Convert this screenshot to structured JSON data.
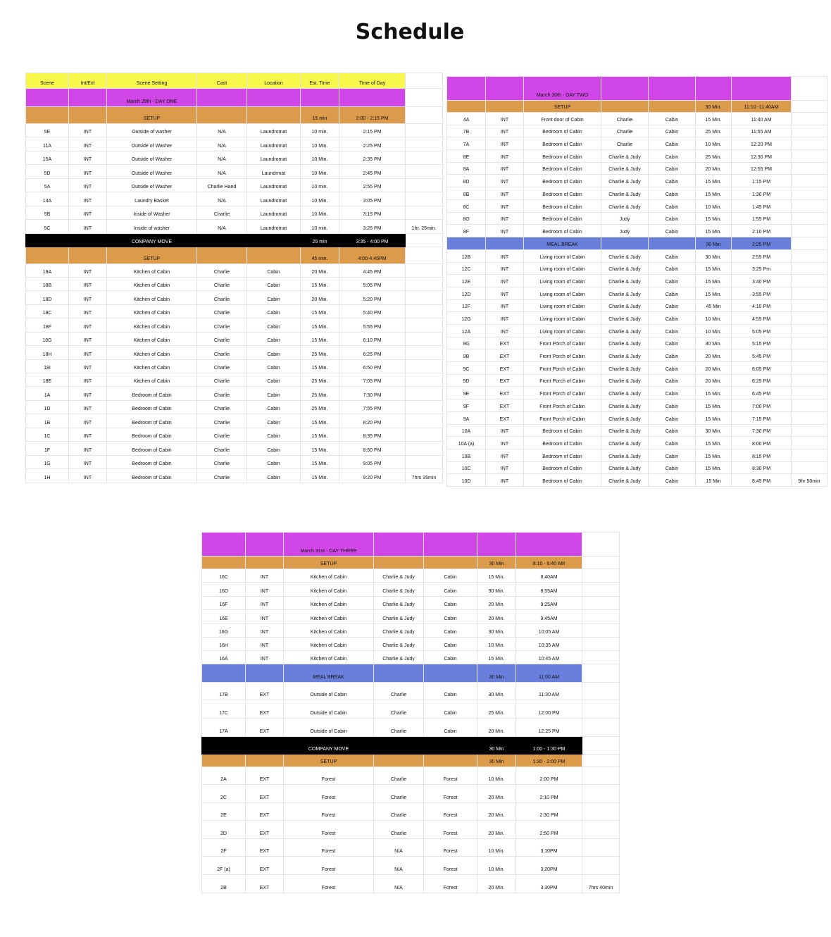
{
  "title": "Schedule",
  "headers": [
    "Scene",
    "Int/Ext",
    "Scene Setting",
    "Cast",
    "Location",
    "Est. Time",
    "Time of Day"
  ],
  "sheets": [
    {
      "id": "day-one",
      "rows": [
        {
          "type": "header"
        },
        {
          "type": "day",
          "label": "March 29th - DAY ONE"
        },
        {
          "type": "setup",
          "label": "SETUP",
          "est": "15 min",
          "time": "2:00 - 2:15 PM"
        },
        {
          "type": "scene",
          "cells": [
            "5E",
            "INT",
            "Outside of washer",
            "N/A",
            "Laundromat",
            "10 min.",
            "2:15 PM"
          ]
        },
        {
          "type": "scene",
          "cells": [
            "11A",
            "INT",
            "Outside of Washer",
            "N/A",
            "Laundromat",
            "10 Min.",
            "2:25 PM"
          ]
        },
        {
          "type": "scene",
          "cells": [
            "15A",
            "INT",
            "Outside of Washer",
            "N/A",
            "Laundromat",
            "10 Min.",
            "2:35 PM"
          ]
        },
        {
          "type": "scene",
          "cells": [
            "5D",
            "INT",
            "Outside of Washer",
            "N/A",
            "Laundrmat",
            "10 Min.",
            "2:45 PM"
          ]
        },
        {
          "type": "scene",
          "cells": [
            "5A",
            "INT",
            "Outside of Washer",
            "Charlie Hand",
            "Laundromat",
            "10 min.",
            "2:55 PM"
          ]
        },
        {
          "type": "scene",
          "cells": [
            "14A",
            "INT",
            "Laundry Basket",
            "N/A",
            "Laundromat",
            "10 Min.",
            "3:05 PM"
          ]
        },
        {
          "type": "scene",
          "cells": [
            "5B",
            "INT",
            "Inside of Washer",
            "Charlie",
            "Laundromat",
            "10 Min.",
            "3:15 PM"
          ]
        },
        {
          "type": "scene",
          "cells": [
            "5C",
            "INT",
            "Inside of washer",
            "N/A",
            "Laundromat",
            "10 min.",
            "3:25 PM"
          ],
          "extra": "1hr. 25min."
        },
        {
          "type": "move",
          "label": "COMPANY MOVE",
          "est": "25 min",
          "time": "3:35 - 4:00 PM"
        },
        {
          "type": "setup",
          "label": "SETUP",
          "est": "45 min.",
          "time": "4:00-4:45PM"
        },
        {
          "type": "scene",
          "cells": [
            "18A",
            "INT",
            "Kitchen of Cabin",
            "Charlie",
            "Cabin",
            "20 Min.",
            "4:45 PM"
          ]
        },
        {
          "type": "scene",
          "cells": [
            "18B",
            "INT",
            "Kitchen of Cabin",
            "Charlie",
            "Cabin",
            "15 Min.",
            "5:05 PM"
          ]
        },
        {
          "type": "scene",
          "cells": [
            "18D",
            "INT",
            "Kitchen of Cabin",
            "Charlie",
            "Cabin",
            "20 Min.",
            "5:20 PM"
          ]
        },
        {
          "type": "scene",
          "cells": [
            "18C",
            "INT",
            "Kitchen of Cabin",
            "Charlie",
            "Cabin",
            "15 Min.",
            "5:40 PM"
          ]
        },
        {
          "type": "scene",
          "cells": [
            "18F",
            "INT",
            "Kitchen of Cabin",
            "Charlie",
            "Cabin",
            "15 Min.",
            "5:55 PM"
          ]
        },
        {
          "type": "scene",
          "cells": [
            "18G",
            "INT",
            "Kitchen of Cabin",
            "Charlie",
            "Cabin",
            "15 Min.",
            "6:10 PM"
          ]
        },
        {
          "type": "scene",
          "cells": [
            "18H",
            "INT",
            "Kitchen of Cabin",
            "Charlie",
            "Cabin",
            "25 Min.",
            "6:25 PM"
          ]
        },
        {
          "type": "scene",
          "cells": [
            "18I",
            "INT",
            "Kitchen of Cabin",
            "Charlie",
            "Cabin",
            "15 Min.",
            "6:50 PM"
          ]
        },
        {
          "type": "scene",
          "cells": [
            "18E",
            "INT",
            "Kitchen of Cabin",
            "Charlie",
            "Cabin",
            "25 Min.",
            "7:05 PM"
          ]
        },
        {
          "type": "scene",
          "cells": [
            "1A",
            "INT",
            "Bedroom of Cabin",
            "Charlie",
            "Cabin",
            "25 Min.",
            "7:30 PM"
          ]
        },
        {
          "type": "scene",
          "cells": [
            "1D",
            "INT",
            "Bedroom of Cabin",
            "Charlie",
            "Cabin",
            "25 Min.",
            "7:55 PM"
          ]
        },
        {
          "type": "scene",
          "cells": [
            "1B",
            "INT",
            "Bedroom of Cabin",
            "Charlie",
            "Cabin",
            "15 Min.",
            "8:20 PM"
          ]
        },
        {
          "type": "scene",
          "cells": [
            "1C",
            "INT",
            "Bedroom of Cabin",
            "Charlie",
            "Cabin",
            "15 Min.",
            "8:35 PM"
          ]
        },
        {
          "type": "scene",
          "cells": [
            "1F",
            "INT",
            "Bedroom of Cabin",
            "Charlie",
            "Cabin",
            "15 Min.",
            "8:50 PM"
          ]
        },
        {
          "type": "scene",
          "cells": [
            "1G",
            "INT",
            "Bedroom of Cabin",
            "Charlie",
            "Cabin",
            "15 Min.",
            "9:05 PM"
          ]
        },
        {
          "type": "scene",
          "cells": [
            "1H",
            "INT",
            "Bedroom of Cabin",
            "Charlie",
            "Cabin",
            "15 Min.",
            "9:20 PM"
          ],
          "extra": "7hrs 35min"
        }
      ]
    },
    {
      "id": "day-two",
      "rows": [
        {
          "type": "day",
          "label": "March 30th - DAY TWO"
        },
        {
          "type": "setup",
          "label": "SETUP",
          "est": "30 Min.",
          "time": "11:10 -11:40AM"
        },
        {
          "type": "scene",
          "cells": [
            "4A",
            "INT",
            "Front door of Cabin",
            "Charlie",
            "Cabin",
            "15 Min.",
            "11:40 AM"
          ]
        },
        {
          "type": "scene",
          "cells": [
            "7B",
            "INT",
            "Bedroom of Cabin",
            "Charlie",
            "Cabin",
            "25 Min.",
            "11:55 AM"
          ]
        },
        {
          "type": "scene",
          "cells": [
            "7A",
            "INT",
            "Bedroom of Cabin",
            "Charlie",
            "Cabin",
            "10 Min.",
            "12:20 PM"
          ]
        },
        {
          "type": "scene",
          "cells": [
            "8E",
            "INT",
            "Bedroom of Cabin",
            "Charlie & Judy",
            "Cabin",
            "25 Min.",
            "12:30 PM"
          ]
        },
        {
          "type": "scene",
          "cells": [
            "8A",
            "INT",
            "Bedroom of Cabin",
            "Charlie & Judy",
            "Cabin",
            "20 Min.",
            "12:55 PM"
          ]
        },
        {
          "type": "scene",
          "cells": [
            "8D",
            "INT",
            "Bedroom of Cabin",
            "Charlie & Judy",
            "Cabin",
            "15 Min.",
            "1:15 PM"
          ]
        },
        {
          "type": "scene",
          "cells": [
            "8B",
            "INT",
            "Bedroom of Cabin",
            "Charlie & Judy",
            "Cabin",
            "15 Min.",
            "1:30 PM"
          ]
        },
        {
          "type": "scene",
          "cells": [
            "8C",
            "INT",
            "Bedroom of Cabin",
            "Charlie & Judy",
            "Cabin",
            "10 Min.",
            "1:45 PM"
          ]
        },
        {
          "type": "scene",
          "cells": [
            "8G",
            "INT",
            "Bedroom of Cabin",
            "Judy",
            "Cabin",
            "15 Min.",
            "1:55 PM"
          ]
        },
        {
          "type": "scene",
          "cells": [
            "8F",
            "INT",
            "Bedroom of Cabin",
            "Judy",
            "Cabin",
            "15 Min.",
            "2:10 PM"
          ]
        },
        {
          "type": "meal",
          "label": "MEAL BREAK",
          "est": "30 Min",
          "time": "2:25 PM"
        },
        {
          "type": "scene",
          "cells": [
            "12B",
            "INT",
            "Living room of Cabin",
            "Charlie & Judy",
            "Cabin",
            "30 Min.",
            "2:55 PM"
          ]
        },
        {
          "type": "scene",
          "cells": [
            "12C",
            "INT",
            "Living room of Cabin",
            "Charlie & Judy",
            "Cabin",
            "15 Min.",
            "3:25 Pm"
          ]
        },
        {
          "type": "scene",
          "cells": [
            "12E",
            "INT",
            "Living room of Cabin",
            "Charlie & Judy",
            "Cabin",
            "15 Min.",
            "3:40 PM"
          ]
        },
        {
          "type": "scene",
          "cells": [
            "12D",
            "INT",
            "Living room of Cabin",
            "Charlie & Judy",
            "Cabin",
            "15 Min.",
            "3:55 PM"
          ]
        },
        {
          "type": "scene",
          "cells": [
            "12F",
            "INT",
            "Living room of Cabin",
            "Charlie & Judy",
            "Cabin",
            "45 Min",
            "4:10 PM"
          ]
        },
        {
          "type": "scene",
          "cells": [
            "12G",
            "INT",
            "Living room of Cabin",
            "Charlie & Judy",
            "Cabin",
            "10 Min.",
            "4:55 PM"
          ]
        },
        {
          "type": "scene",
          "cells": [
            "12A",
            "INT",
            "Living room of Cabin",
            "Charlie & Judy",
            "Cabin",
            "10 Min.",
            "5:05 PM"
          ]
        },
        {
          "type": "scene",
          "cells": [
            "9G",
            "EXT",
            "Front Porch of Cabin",
            "Charlie & Judy",
            "Cabin",
            "30 Min.",
            "5:15 PM"
          ]
        },
        {
          "type": "scene",
          "cells": [
            "9B",
            "EXT",
            "Front Porch of Cabin",
            "Charlie & Judy",
            "Cabin",
            "20 Min.",
            "5:45 PM"
          ]
        },
        {
          "type": "scene",
          "cells": [
            "9C",
            "EXT",
            "Front Porch of Cabin",
            "Charlie & Judy",
            "Cabin",
            "20 Min.",
            "6:05 PM"
          ]
        },
        {
          "type": "scene",
          "cells": [
            "9D",
            "EXT",
            "Front Porch of Cabin",
            "Charlie & Judy",
            "Cabin",
            "20 Min.",
            "6:25 PM"
          ]
        },
        {
          "type": "scene",
          "cells": [
            "9E",
            "EXT",
            "Front Porch of Cabin",
            "Charlie & Judy",
            "Cabin",
            "15 Min.",
            "6:45 PM"
          ]
        },
        {
          "type": "scene",
          "cells": [
            "9F",
            "EXT",
            "Front Porch of Cabin",
            "Charlie & Judy",
            "Cabin",
            "15 Min.",
            "7:00 PM"
          ]
        },
        {
          "type": "scene",
          "cells": [
            "9A",
            "EXT",
            "Front Porch of Cabin",
            "Charlie & Judy",
            "Cabin",
            "15 Min.",
            "7:15 PM"
          ]
        },
        {
          "type": "scene",
          "cells": [
            "10A",
            "INT",
            "Bedroom of Cabin",
            "Charlie & Judy",
            "Cabin",
            "30 Min.",
            "7:30 PM"
          ]
        },
        {
          "type": "scene",
          "cells": [
            "10A (a)",
            "INT",
            "Bedroom of Cabin",
            "Charlie & Judy",
            "Cabin",
            "15 Min.",
            "8:00 PM"
          ]
        },
        {
          "type": "scene",
          "cells": [
            "10B",
            "INT",
            "Bedroom of Cabin",
            "Charlie & Judy",
            "Cabin",
            "15 Min.",
            "8:15 PM"
          ]
        },
        {
          "type": "scene",
          "cells": [
            "10C",
            "INT",
            "Bedroom of Cabin",
            "Charlie & Judy",
            "Cabin",
            "15 Min.",
            "8:30 PM"
          ]
        },
        {
          "type": "scene",
          "cells": [
            "10D",
            "INT",
            "Bedroom of Cabin",
            "Charlie & Judy",
            "Cabin",
            "15 Min",
            "8:45 PM"
          ],
          "extra": "9hr 50min"
        }
      ]
    },
    {
      "id": "day-three",
      "rows": [
        {
          "type": "day",
          "label": "March 31st - DAY THREE"
        },
        {
          "type": "setup",
          "label": "SETUP",
          "est": "30 Min",
          "time": "8:10 - 8:40 AM"
        },
        {
          "type": "scene",
          "cells": [
            "16C",
            "INT",
            "Kitchen of Cabin",
            "Charlie & Judy",
            "Cabin",
            "15 Min.",
            "8:40AM"
          ]
        },
        {
          "type": "scene",
          "cells": [
            "16D",
            "INT",
            "Kitchen of Cabin",
            "Charlie & Judy",
            "Cabin",
            "30 Min.",
            "8:55AM"
          ]
        },
        {
          "type": "scene",
          "cells": [
            "16F",
            "INT",
            "Kitchen of Cabin",
            "Charlie & Judy",
            "Cabin",
            "20 Min.",
            "9:25AM"
          ]
        },
        {
          "type": "scene",
          "cells": [
            "16E",
            "INT",
            "Kitchen of Cabin",
            "Charlie & Judy",
            "Cabin",
            "20 Min.",
            "9:45AM"
          ]
        },
        {
          "type": "scene",
          "cells": [
            "16G",
            "INT",
            "Kitchen of Cabin",
            "Charlie & Judy",
            "Cabin",
            "30 Min.",
            "10:05 AM"
          ]
        },
        {
          "type": "scene",
          "cells": [
            "16H",
            "INT",
            "Kitchen of Cabin",
            "Charlie & Judy",
            "Cabin",
            "10 Min.",
            "10:35 AM"
          ]
        },
        {
          "type": "scene",
          "cells": [
            "16A",
            "INT",
            "Kitchen of Cabin",
            "Charlie & Judy",
            "Cabin",
            "15 Min.",
            "10:45 AM"
          ]
        },
        {
          "type": "meal",
          "label": "MEAL BREAK",
          "est": "30 Min",
          "time": "11:00 AM"
        },
        {
          "type": "scene",
          "cells": [
            "17B",
            "EXT",
            "Outside of Cabin",
            "Charlie",
            "Cabin",
            "30 Min.",
            "11:30 AM"
          ]
        },
        {
          "type": "scene",
          "cells": [
            "17C",
            "EXT",
            "Outside of Cabin",
            "Charlie",
            "Cabin",
            "25 Min.",
            "12:00 PM"
          ]
        },
        {
          "type": "scene",
          "cells": [
            "17A",
            "EXT",
            "Outside of Cabin",
            "Charlie",
            "Cabin",
            "20 Min.",
            "12:25 PM"
          ]
        },
        {
          "type": "move",
          "label": "COMPANY MOVE",
          "est": "30 Min",
          "time": "1:00 - 1:30 PM"
        },
        {
          "type": "setup",
          "label": "SETUP",
          "est": "30 Min",
          "time": "1:30 - 2:00 PM"
        },
        {
          "type": "scene",
          "cells": [
            "2A",
            "EXT",
            "Forest",
            "Charlie",
            "Forest",
            "10 Min.",
            "2:00 PM"
          ]
        },
        {
          "type": "scene",
          "cells": [
            "2C",
            "EXT",
            "Forest",
            "Charlie",
            "Forest",
            "20 Min.",
            "2:10 PM"
          ]
        },
        {
          "type": "scene",
          "cells": [
            "2E",
            "EXT",
            "Forest",
            "Charlie",
            "Forest",
            "20 Min.",
            "2:30 PM"
          ]
        },
        {
          "type": "scene",
          "cells": [
            "2D",
            "EXT",
            "Forest",
            "Charlie",
            "Forest",
            "20 Min.",
            "2:50 PM"
          ]
        },
        {
          "type": "scene",
          "cells": [
            "2F",
            "EXT",
            "Forest",
            "N/A",
            "Forest",
            "10 Min.",
            "3:10PM"
          ]
        },
        {
          "type": "scene",
          "cells": [
            "2F (a)",
            "EXT",
            "Forest",
            "N/A",
            "Forest",
            "10 Min.",
            "3:20PM"
          ]
        },
        {
          "type": "scene",
          "cells": [
            "2B",
            "EXT",
            "Forest",
            "N/A",
            "Forest",
            "20 Min.",
            "3:30PM"
          ],
          "extra": "7hrs 40min"
        }
      ]
    }
  ]
}
